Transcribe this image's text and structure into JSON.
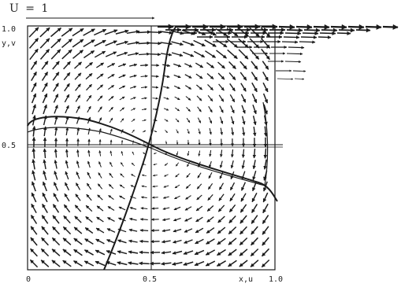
{
  "lid_label": "U = 1",
  "axes": {
    "y_label": "y,v",
    "x_label": "x,u",
    "y_ticks": [
      "1.0",
      "0.5"
    ],
    "x_ticks": [
      "0",
      "0.5",
      "1.0"
    ]
  },
  "colors": {
    "ink": "#1a1a1a",
    "background": "#ffffff"
  }
}
